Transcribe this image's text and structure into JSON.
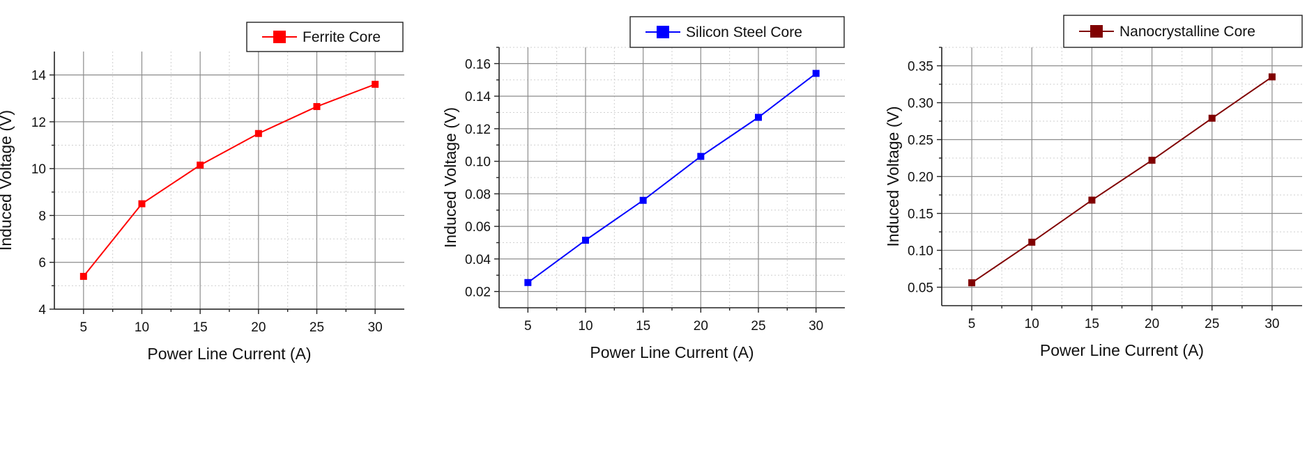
{
  "chart_data": [
    {
      "type": "line",
      "x": [
        5,
        10,
        15,
        20,
        25,
        30
      ],
      "series": [
        {
          "name": "Ferrite Core",
          "color": "#ff0000",
          "marker": "square",
          "values": [
            5.4,
            8.5,
            10.15,
            11.5,
            12.65,
            13.6
          ]
        }
      ],
      "xlabel": "Power Line Current (A)",
      "ylabel": "Induced Voltage (V)",
      "xlim": [
        2.5,
        32.5
      ],
      "ylim": [
        4,
        15
      ],
      "xticks": [
        5,
        10,
        15,
        20,
        25,
        30
      ],
      "yticks": [
        4,
        6,
        8,
        10,
        12,
        14
      ],
      "ytick_labels": [
        "4",
        "6",
        "8",
        "10",
        "12",
        "14"
      ],
      "grid": true,
      "legend": "top-right"
    },
    {
      "type": "line",
      "x": [
        5,
        10,
        15,
        20,
        25,
        30
      ],
      "series": [
        {
          "name": "Silicon Steel Core",
          "color": "#0000ff",
          "marker": "square",
          "values": [
            0.0255,
            0.0515,
            0.076,
            0.103,
            0.127,
            0.154
          ]
        }
      ],
      "xlabel": "Power Line Current (A)",
      "ylabel": "Induced Voltage (V)",
      "xlim": [
        2.5,
        32.5
      ],
      "ylim": [
        0.01,
        0.17
      ],
      "xticks": [
        5,
        10,
        15,
        20,
        25,
        30
      ],
      "yticks": [
        0.02,
        0.04,
        0.06,
        0.08,
        0.1,
        0.12,
        0.14,
        0.16
      ],
      "ytick_labels": [
        "0.02",
        "0.04",
        "0.06",
        "0.08",
        "0.10",
        "0.12",
        "0.14",
        "0.16"
      ],
      "grid": true,
      "legend": "top-right"
    },
    {
      "type": "line",
      "x": [
        5,
        10,
        15,
        20,
        25,
        30
      ],
      "series": [
        {
          "name": "Nanocrystalline Core",
          "color": "#800000",
          "marker": "square",
          "values": [
            0.056,
            0.111,
            0.168,
            0.222,
            0.279,
            0.335
          ]
        }
      ],
      "xlabel": "Power Line Current (A)",
      "ylabel": "Induced Voltage (V)",
      "xlim": [
        2.5,
        32.5
      ],
      "ylim": [
        0.025,
        0.375
      ],
      "xticks": [
        5,
        10,
        15,
        20,
        25,
        30
      ],
      "yticks": [
        0.05,
        0.1,
        0.15,
        0.2,
        0.25,
        0.3,
        0.35
      ],
      "ytick_labels": [
        "0.05",
        "0.10",
        "0.15",
        "0.20",
        "0.25",
        "0.30",
        "0.35"
      ],
      "grid": true,
      "legend": "top-right"
    }
  ]
}
